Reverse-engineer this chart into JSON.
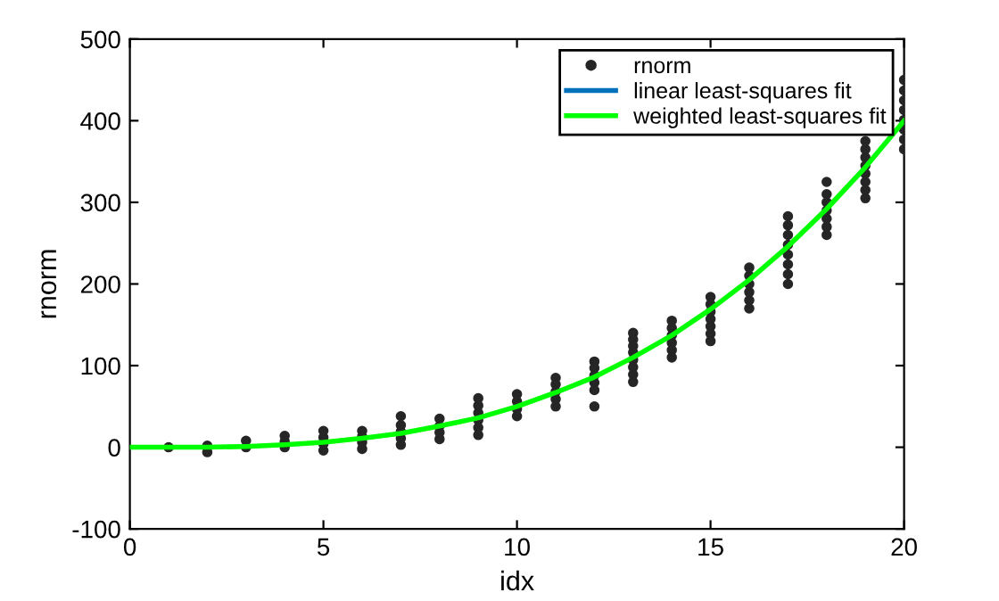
{
  "chart_data": {
    "type": "scatter",
    "xlabel": "idx",
    "ylabel": "rnorm",
    "xlim": [
      0,
      20
    ],
    "ylim": [
      -100,
      500
    ],
    "xticks": [
      0,
      5,
      10,
      15,
      20
    ],
    "yticks": [
      -100,
      0,
      100,
      200,
      300,
      400,
      500
    ],
    "legend": "top right",
    "grid": false,
    "series": [
      {
        "name": "rnorm",
        "marker": "circle",
        "color": "#262626",
        "x": [
          1,
          2,
          2,
          3,
          3,
          4,
          4,
          4,
          5,
          5,
          5,
          5,
          6,
          6,
          6,
          6,
          7,
          7,
          7,
          7,
          7,
          8,
          8,
          8,
          8,
          9,
          9,
          9,
          9,
          9,
          9,
          10,
          10,
          10,
          10,
          11,
          11,
          11,
          11,
          11,
          12,
          12,
          12,
          12,
          12,
          12,
          13,
          13,
          13,
          13,
          13,
          13,
          13,
          13,
          14,
          14,
          14,
          14,
          14,
          14,
          15,
          15,
          15,
          15,
          15,
          15,
          15,
          16,
          16,
          16,
          16,
          16,
          16,
          17,
          17,
          17,
          17,
          17,
          17,
          17,
          17,
          18,
          18,
          18,
          18,
          18,
          18,
          18,
          19,
          19,
          19,
          19,
          19,
          19,
          19,
          19,
          20,
          20,
          20,
          20,
          20,
          20,
          20,
          20
        ],
        "values": [
          0,
          -6,
          2,
          0,
          8,
          0,
          7,
          14,
          -4,
          4,
          12,
          20,
          -2,
          6,
          13,
          20,
          3,
          11,
          19,
          27,
          38,
          10,
          18,
          26,
          35,
          15,
          24,
          33,
          42,
          51,
          60,
          38,
          47,
          56,
          65,
          50,
          59,
          68,
          77,
          85,
          50,
          70,
          79,
          88,
          97,
          105,
          80,
          89,
          98,
          107,
          116,
          124,
          132,
          140,
          110,
          119,
          128,
          137,
          146,
          155,
          130,
          139,
          148,
          157,
          166,
          175,
          184,
          170,
          180,
          190,
          200,
          210,
          220,
          200,
          212,
          224,
          236,
          248,
          260,
          272,
          283,
          260,
          270,
          280,
          290,
          300,
          310,
          325,
          305,
          315,
          325,
          335,
          345,
          355,
          365,
          375,
          365,
          377,
          389,
          401,
          413,
          425,
          437,
          450
        ]
      },
      {
        "name": "linear least-squares fit",
        "type": "line",
        "color": "#0072bd",
        "line_style": "solid",
        "marker": "none",
        "values": [
          null,
          null,
          null,
          null,
          null,
          null,
          null,
          null,
          null,
          null,
          null,
          null,
          null,
          null,
          null,
          null,
          null,
          null,
          null,
          null,
          null
        ]
      },
      {
        "name": "weighted least-squares fit",
        "type": "line",
        "color": "#00ff00",
        "line_style": "solid",
        "marker": "none",
        "x": [
          0,
          1,
          2,
          3,
          4,
          5,
          6,
          7,
          8,
          9,
          10,
          11,
          12,
          13,
          14,
          15,
          16,
          17,
          18,
          19,
          20
        ],
        "values": [
          0,
          0,
          0,
          1,
          3,
          6,
          11,
          17,
          26,
          36,
          50,
          67,
          86,
          110,
          137,
          169,
          205,
          246,
          292,
          343,
          400
        ]
      }
    ]
  }
}
